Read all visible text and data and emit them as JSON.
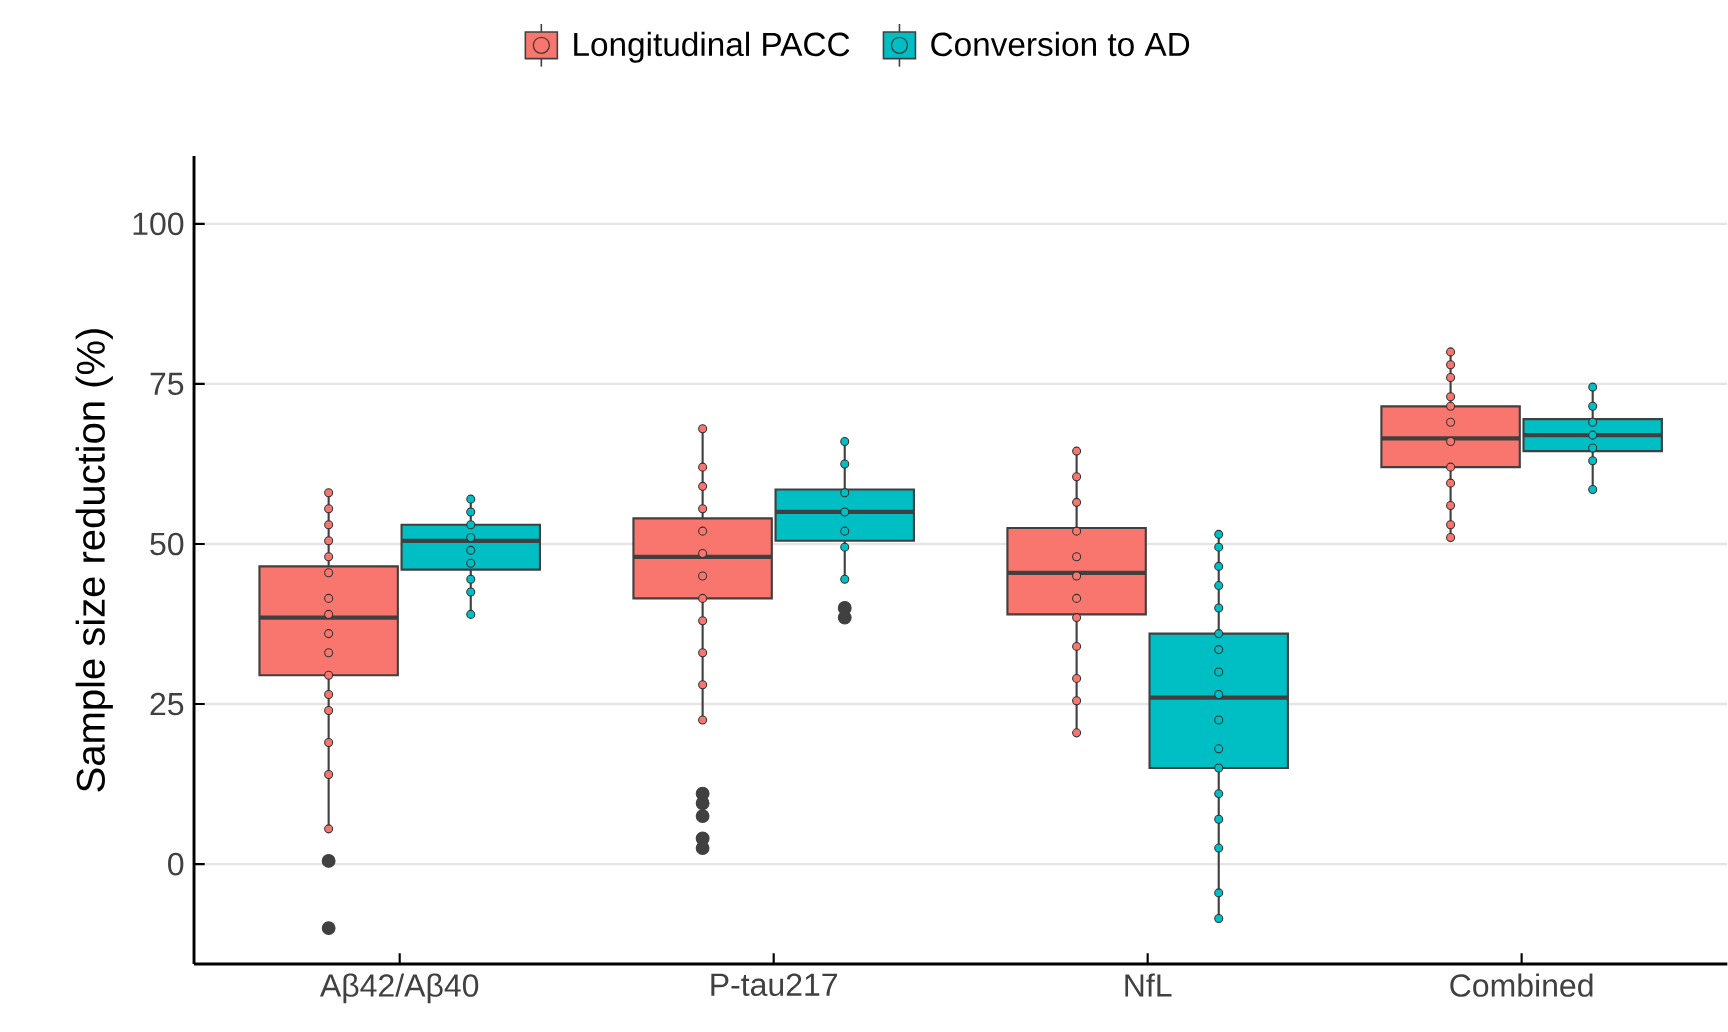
{
  "chart_data": {
    "type": "box",
    "ylabel": "Sample size reduction (%)",
    "categories": [
      "Aβ42/Aβ40",
      "P-tau217",
      "NfL",
      "Combined"
    ],
    "ylim": [
      -15.6,
      110.6
    ],
    "yticks": [
      0,
      25,
      50,
      75,
      100
    ],
    "grid": "y",
    "legend": "top",
    "series": [
      {
        "name": "Longitudinal PACC",
        "color": "#f8766d",
        "boxes": [
          {
            "low": 5.5,
            "q1": 29.5,
            "median": 38.5,
            "q3": 46.5,
            "high": 58,
            "outliers": [
              0.5,
              -10
            ]
          },
          {
            "low": 22.5,
            "q1": 41.5,
            "median": 48,
            "q3": 54,
            "high": 68,
            "outliers": [
              11,
              9.5,
              7.5,
              4,
              2.5
            ]
          },
          {
            "low": 20.5,
            "q1": 39,
            "median": 45.5,
            "q3": 52.5,
            "high": 64.5
          },
          {
            "low": 51,
            "q1": 62,
            "median": 66.5,
            "q3": 71.5,
            "high": 80
          }
        ]
      },
      {
        "name": "Conversion to AD",
        "color": "#00bfc4",
        "boxes": [
          {
            "low": 39,
            "q1": 46,
            "median": 50.5,
            "q3": 53,
            "high": 57
          },
          {
            "low": 44.5,
            "q1": 50.5,
            "median": 55,
            "q3": 58.5,
            "high": 66,
            "outliers": [
              40,
              38.5
            ]
          },
          {
            "low": -8.5,
            "q1": 15,
            "median": 26,
            "q3": 36,
            "high": 51.5
          },
          {
            "low": 58.5,
            "q1": 64.5,
            "median": 67,
            "q3": 69.5,
            "high": 74.5
          }
        ]
      },
      {
        "type": "scatter",
        "color": "#f8766d",
        "x": [
          "Aβ42/Aβ40",
          "Aβ42/Aβ40",
          "Aβ42/Aβ40",
          "Aβ42/Aβ40",
          "Aβ42/Aβ40",
          "Aβ42/Aβ40",
          "Aβ42/Aβ40",
          "Aβ42/Aβ40",
          "Aβ42/Aβ40",
          "Aβ42/Aβ40",
          "Aβ42/Aβ40",
          "Aβ42/Aβ40",
          "Aβ42/Aβ40",
          "Aβ42/Aβ40",
          "Aβ42/Aβ40",
          "Aβ42/Aβ40",
          "P-tau217",
          "P-tau217",
          "P-tau217",
          "P-tau217",
          "P-tau217",
          "P-tau217",
          "P-tau217",
          "P-tau217",
          "P-tau217",
          "P-tau217",
          "P-tau217",
          "P-tau217",
          "NfL",
          "NfL",
          "NfL",
          "NfL",
          "NfL",
          "NfL",
          "NfL",
          "NfL",
          "NfL",
          "NfL",
          "NfL",
          "NfL",
          "Combined",
          "Combined",
          "Combined",
          "Combined",
          "Combined",
          "Combined",
          "Combined",
          "Combined",
          "Combined",
          "Combined",
          "Combined",
          "Combined"
        ],
        "values": [
          58,
          55.5,
          53,
          50.5,
          48,
          45.5,
          41.5,
          39,
          36,
          33,
          29.5,
          26.5,
          24,
          19,
          14,
          5.5,
          68,
          62,
          59,
          55.5,
          52,
          48.5,
          45,
          41.5,
          38,
          33,
          28,
          22.5,
          64.5,
          60.5,
          56.5,
          52,
          48,
          45,
          41.5,
          38.5,
          34,
          29,
          25.5,
          20.5,
          80,
          78,
          76,
          73,
          71.5,
          69,
          66,
          62,
          59.5,
          56,
          53,
          51
        ]
      },
      {
        "type": "scatter",
        "color": "#00bfc4",
        "x": [
          "Aβ42/Aβ40",
          "Aβ42/Aβ40",
          "Aβ42/Aβ40",
          "Aβ42/Aβ40",
          "Aβ42/Aβ40",
          "Aβ42/Aβ40",
          "Aβ42/Aβ40",
          "Aβ42/Aβ40",
          "Aβ42/Aβ40",
          "P-tau217",
          "P-tau217",
          "P-tau217",
          "P-tau217",
          "P-tau217",
          "P-tau217",
          "P-tau217",
          "NfL",
          "NfL",
          "NfL",
          "NfL",
          "NfL",
          "NfL",
          "NfL",
          "NfL",
          "NfL",
          "NfL",
          "NfL",
          "NfL",
          "NfL",
          "NfL",
          "NfL",
          "NfL",
          "NfL",
          "Combined",
          "Combined",
          "Combined",
          "Combined",
          "Combined",
          "Combined",
          "Combined"
        ],
        "values": [
          57,
          55,
          53,
          51,
          49,
          47,
          44.5,
          42.5,
          39,
          66,
          62.5,
          58,
          55,
          52,
          49.5,
          44.5,
          51.5,
          49.5,
          46.5,
          43.5,
          40,
          36,
          33.5,
          30,
          26.5,
          22.5,
          18,
          15,
          11,
          7,
          2.5,
          -4.5,
          -8.5,
          74.5,
          71.5,
          69,
          67,
          65,
          63,
          58.5
        ]
      }
    ]
  }
}
